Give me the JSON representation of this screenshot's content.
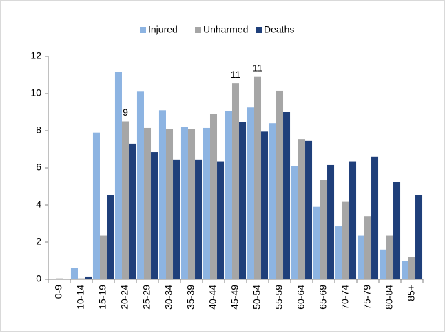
{
  "chart_data": {
    "type": "bar",
    "categories": [
      "0-9",
      "10-14",
      "15-19",
      "20-24",
      "25-29",
      "30-34",
      "35-39",
      "40-44",
      "45-49",
      "50-54",
      "55-59",
      "60-64",
      "65-69",
      "70-74",
      "75-79",
      "80-84",
      "85+"
    ],
    "series": [
      {
        "name": "Injured",
        "color": "#8db4e2",
        "values": [
          0,
          0.6,
          7.9,
          11.15,
          10.1,
          9.1,
          8.2,
          8.15,
          9.05,
          9.25,
          8.4,
          6.1,
          3.9,
          2.85,
          2.35,
          1.6,
          1.0
        ]
      },
      {
        "name": "Unharmed",
        "color": "#a6a6a6",
        "values": [
          0.05,
          0.05,
          2.35,
          8.5,
          8.15,
          8.1,
          8.1,
          8.9,
          10.55,
          10.9,
          10.15,
          7.55,
          5.35,
          4.2,
          3.4,
          2.35,
          1.2
        ],
        "value_labels": [
          null,
          null,
          null,
          "9",
          null,
          null,
          null,
          null,
          "11",
          "11",
          null,
          null,
          null,
          null,
          null,
          null,
          null
        ]
      },
      {
        "name": "Deaths",
        "color": "#1f3f7a",
        "values": [
          0,
          0.15,
          4.55,
          7.3,
          6.85,
          6.45,
          6.45,
          6.35,
          8.45,
          7.95,
          9.0,
          7.45,
          6.15,
          6.35,
          6.6,
          5.25,
          4.55
        ]
      }
    ],
    "ylim": [
      0,
      12
    ],
    "yticks": [
      0,
      2,
      4,
      6,
      8,
      10,
      12
    ],
    "grid": false,
    "legend": "top"
  }
}
